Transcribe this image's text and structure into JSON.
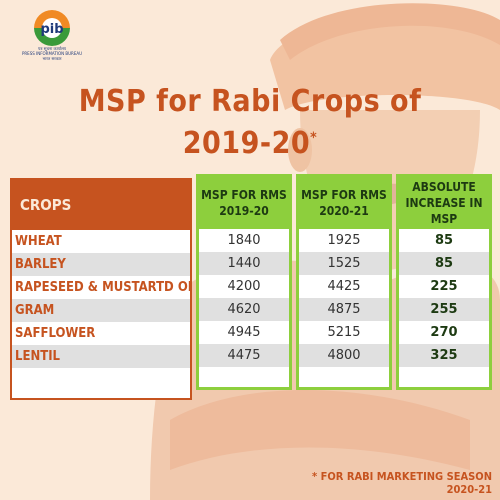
{
  "logo": {
    "mark_text": "pib",
    "hindi_line": "पत्र सूचना कार्यालय",
    "english_line": "PRESS INFORMATION BUREAU",
    "hindi_sub": "भारत सरकार"
  },
  "title": {
    "line1": "MSP for Rabi Crops of",
    "line2": "2019-20",
    "star": "*"
  },
  "table": {
    "crop_header": "CROPS",
    "headers": [
      {
        "line1": "MSP FOR RMS",
        "line2": "2019-20"
      },
      {
        "line1": "MSP FOR RMS",
        "line2": "2020-21"
      },
      {
        "line1": "ABSOLUTE",
        "line2": "INCREASE IN MSP"
      }
    ],
    "rows": [
      {
        "crop": "WHEAT",
        "msp_2019_20": "1840",
        "msp_2020_21": "1925",
        "increase": "85"
      },
      {
        "crop": "BARLEY",
        "msp_2019_20": "1440",
        "msp_2020_21": "1525",
        "increase": "85"
      },
      {
        "crop": "RAPESEED & MUSTARTD OIL",
        "msp_2019_20": "4200",
        "msp_2020_21": "4425",
        "increase": "225"
      },
      {
        "crop": "GRAM",
        "msp_2019_20": "4620",
        "msp_2020_21": "4875",
        "increase": "255"
      },
      {
        "crop": "SAFFLOWER",
        "msp_2019_20": "4945",
        "msp_2020_21": "5215",
        "increase": "270"
      },
      {
        "crop": "LENTIL",
        "msp_2019_20": "4475",
        "msp_2020_21": "4800",
        "increase": "325"
      }
    ]
  },
  "footnote": "* FOR RABI MARKETING SEASON 2020-21",
  "colors": {
    "accent": "#c6531f",
    "green": "#8dcf3d",
    "background": "#fbe9d8",
    "alt_row": "#e0e0e0"
  }
}
